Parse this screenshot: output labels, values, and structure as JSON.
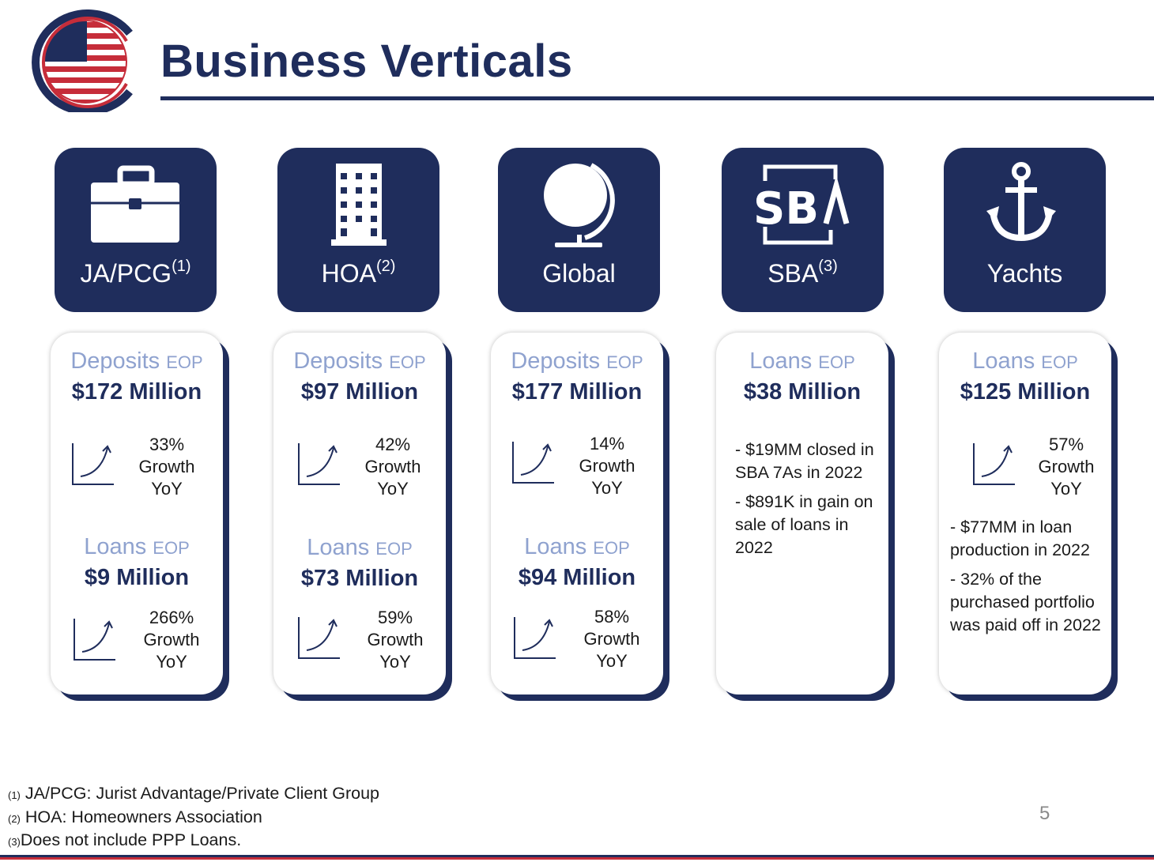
{
  "header": {
    "title": "Business Verticals",
    "logo_icon": "striped-globe-logo"
  },
  "colors": {
    "navy": "#1f2d5c",
    "light_blue": "#8fa2cf",
    "red": "#c62d3a"
  },
  "verticals": [
    {
      "label": "JA/PCG",
      "sup": "(1)",
      "icon": "briefcase-icon"
    },
    {
      "label": "HOA",
      "sup": "(2)",
      "icon": "building-icon"
    },
    {
      "label": "Global",
      "sup": "",
      "icon": "globe-icon"
    },
    {
      "label": "SBA",
      "sup": "(3)",
      "icon": "sba-logo-icon"
    },
    {
      "label": "Yachts",
      "sup": "",
      "icon": "anchor-icon"
    }
  ],
  "cards": [
    {
      "m1": {
        "label": "Deposits",
        "suffix": "EOP",
        "value": "$172 Million",
        "pct": "33%",
        "growth": "Growth",
        "yoy": "YoY"
      },
      "m2": {
        "label": "Loans",
        "suffix": "EOP",
        "value": "$9 Million",
        "pct": "266%",
        "growth": "Growth",
        "yoy": "YoY"
      }
    },
    {
      "m1": {
        "label": "Deposits",
        "suffix": "EOP",
        "value": "$97 Million",
        "pct": "42%",
        "growth": "Growth",
        "yoy": "YoY"
      },
      "m2": {
        "label": "Loans",
        "suffix": "EOP",
        "value": "$73 Million",
        "pct": "59%",
        "growth": "Growth",
        "yoy": "YoY"
      }
    },
    {
      "m1": {
        "label": "Deposits",
        "suffix": "EOP",
        "value": "$177 Million",
        "pct": "14%",
        "growth": "Growth",
        "yoy": "YoY"
      },
      "m2": {
        "label": "Loans",
        "suffix": "EOP",
        "value": "$94 Million",
        "pct": "58%",
        "growth": "Growth",
        "yoy": "YoY"
      }
    },
    {
      "m1": {
        "label": "Loans",
        "suffix": "EOP",
        "value": "$38 Million"
      },
      "notes": [
        "- $19MM closed in SBA 7As in 2022",
        "- $891K in gain on sale of loans in 2022"
      ]
    },
    {
      "m1": {
        "label": "Loans",
        "suffix": "EOP",
        "value": "$125 Million",
        "pct": "57%",
        "growth": "Growth",
        "yoy": "YoY"
      },
      "notes": [
        "- $77MM in loan production in 2022",
        "- 32% of the purchased portfolio was paid off in 2022"
      ]
    }
  ],
  "footnotes": [
    {
      "mark": "(1)",
      "text": "JA/PCG: Jurist Advantage/Private Client Group"
    },
    {
      "mark": "(2)",
      "text": "HOA: Homeowners Association"
    },
    {
      "mark": "(3)",
      "text": "Does not include PPP Loans."
    }
  ],
  "page_number": "5"
}
